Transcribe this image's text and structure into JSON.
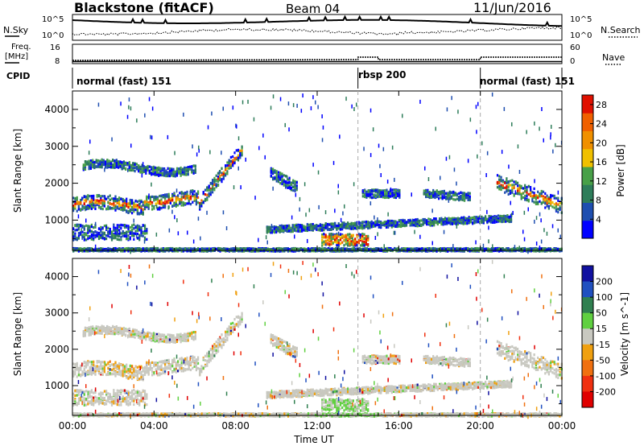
{
  "header": {
    "station": "Blackstone (fitACF)",
    "beam": "Beam 04",
    "date": "11/Jun/2016"
  },
  "nsky_panel": {
    "left_label": "N.Sky",
    "left_ticks": [
      "10^5",
      "10^0"
    ],
    "right_ticks": [
      "10^5",
      "10^0"
    ],
    "right_label": "N.Search"
  },
  "freq_panel": {
    "label_line1": "Freq.",
    "label_line2": "[MHz]",
    "left_ticks": [
      "16",
      "8"
    ],
    "right_ticks": [
      "60",
      "0"
    ],
    "right_label": "Nave"
  },
  "cpid_panel": {
    "label": "CPID",
    "programs": [
      "normal (fast) 151",
      "rbsp 200",
      "normal (fast) 151"
    ]
  },
  "x_axis": {
    "label": "Time UT",
    "ticks": [
      "00:00",
      "04:00",
      "08:00",
      "12:00",
      "16:00",
      "20:00",
      "00:00"
    ]
  },
  "chart_data": [
    {
      "type": "heatmap",
      "title": "Power",
      "ylabel": "Slant Range [km]",
      "xlabel": "Time UT",
      "ylim": [
        180,
        4500
      ],
      "yticks": [
        "1000",
        "2000",
        "3000",
        "4000"
      ],
      "x_hours_range": [
        0,
        24
      ],
      "mode_change_hours": [
        14,
        20
      ],
      "colorbar": {
        "label": "Power [dB]",
        "ticks": [
          "4",
          "8",
          "12",
          "16",
          "20",
          "24",
          "28"
        ],
        "range": [
          0,
          30
        ],
        "colors": [
          "#0000ff",
          "#1e4eb0",
          "#2e7d5a",
          "#48a048",
          "#f0c000",
          "#f09000",
          "#f06000",
          "#e01000"
        ]
      }
    },
    {
      "type": "heatmap",
      "title": "Velocity",
      "ylabel": "Slant Range [km]",
      "xlabel": "Time UT",
      "ylim": [
        180,
        4500
      ],
      "yticks": [
        "1000",
        "2000",
        "3000",
        "4000"
      ],
      "x_hours_range": [
        0,
        24
      ],
      "colorbar": {
        "label": "Velocity [m s^-1]",
        "ticks": [
          "200",
          "100",
          "50",
          "15",
          "-15",
          "-50",
          "-100",
          "-200"
        ],
        "colors": [
          "#1010a0",
          "#2050c0",
          "#308050",
          "#60d040",
          "#c8c8c0",
          "#f0a010",
          "#f07010",
          "#f03010",
          "#e00000"
        ]
      }
    }
  ]
}
